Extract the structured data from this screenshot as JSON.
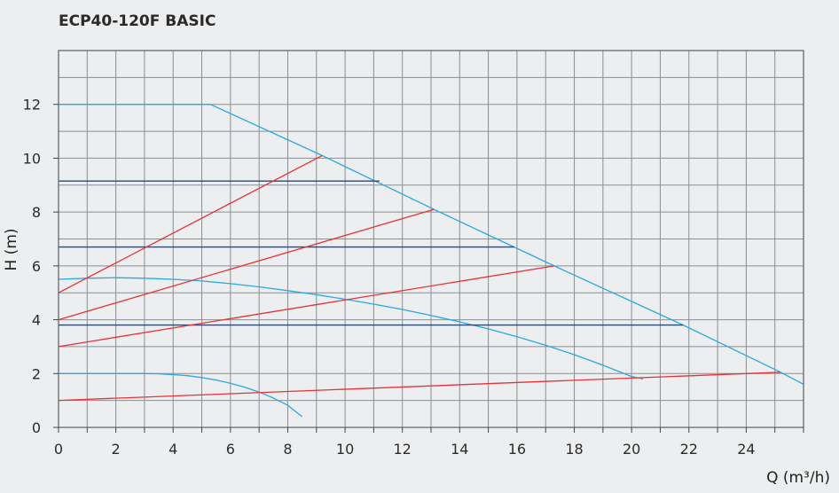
{
  "chart_data": {
    "type": "line",
    "title": "ECP40-120F BASIC",
    "xlabel": "Q (m³/h)",
    "ylabel": "H (m)",
    "xlim": [
      0,
      26
    ],
    "ylim": [
      0,
      14
    ],
    "x_ticks": [
      0,
      2,
      4,
      6,
      8,
      10,
      12,
      14,
      16,
      18,
      20,
      22,
      24
    ],
    "y_ticks": [
      0,
      2,
      4,
      6,
      8,
      10,
      12
    ],
    "grid": true,
    "x_grid_step": 1,
    "y_grid_step": 1,
    "colors": {
      "background": "#eceeef",
      "grid": "#8a8f94",
      "frame": "#5a5f64",
      "pump_curve": "#29a9e1",
      "system_curve": "#e5333b",
      "constant_pressure": "#2f4a6e"
    },
    "series": [
      {
        "kind": "pump_curve",
        "points": [
          [
            0,
            12
          ],
          [
            5.3,
            12
          ],
          [
            9.2,
            10.1
          ],
          [
            13.1,
            8.1
          ],
          [
            15.9,
            6.7
          ],
          [
            17.3,
            6.0
          ],
          [
            21.8,
            3.8
          ],
          [
            25.2,
            2.05
          ],
          [
            26,
            1.6
          ]
        ]
      },
      {
        "kind": "pump_curve",
        "points": [
          [
            0,
            5.5
          ],
          [
            1,
            5.54
          ],
          [
            2,
            5.56
          ],
          [
            3,
            5.54
          ],
          [
            4,
            5.5
          ],
          [
            5,
            5.44
          ],
          [
            6,
            5.34
          ],
          [
            7,
            5.22
          ],
          [
            8,
            5.08
          ],
          [
            9,
            4.93
          ],
          [
            10,
            4.76
          ],
          [
            11,
            4.58
          ],
          [
            12,
            4.38
          ],
          [
            13,
            4.16
          ],
          [
            14,
            3.92
          ],
          [
            15,
            3.66
          ],
          [
            16,
            3.37
          ],
          [
            17,
            3.05
          ],
          [
            18,
            2.7
          ],
          [
            19,
            2.31
          ],
          [
            20,
            1.89
          ],
          [
            20.4,
            1.8
          ]
        ]
      },
      {
        "kind": "pump_curve",
        "points": [
          [
            0,
            2
          ],
          [
            1,
            2.0
          ],
          [
            2,
            2.0
          ],
          [
            3,
            2.0
          ],
          [
            3.5,
            1.99
          ],
          [
            4,
            1.96
          ],
          [
            4.5,
            1.92
          ],
          [
            5,
            1.85
          ],
          [
            5.5,
            1.76
          ],
          [
            6,
            1.64
          ],
          [
            6.5,
            1.49
          ],
          [
            7,
            1.31
          ],
          [
            7.5,
            1.09
          ],
          [
            8,
            0.82
          ],
          [
            8.5,
            0.4
          ]
        ]
      },
      {
        "kind": "constant_pressure",
        "points": [
          [
            0,
            9.15
          ],
          [
            11.2,
            9.15
          ]
        ]
      },
      {
        "kind": "constant_pressure",
        "points": [
          [
            0,
            6.7
          ],
          [
            15.9,
            6.7
          ]
        ]
      },
      {
        "kind": "constant_pressure",
        "points": [
          [
            0,
            3.8
          ],
          [
            21.8,
            3.8
          ]
        ]
      },
      {
        "kind": "system_curve",
        "points": [
          [
            0,
            5.0
          ],
          [
            9.2,
            10.1
          ]
        ]
      },
      {
        "kind": "system_curve",
        "points": [
          [
            0,
            4.0
          ],
          [
            13.1,
            8.1
          ]
        ]
      },
      {
        "kind": "system_curve",
        "points": [
          [
            0,
            3.0
          ],
          [
            17.3,
            6.0
          ]
        ]
      },
      {
        "kind": "system_curve",
        "points": [
          [
            0,
            1.0
          ],
          [
            25.2,
            2.05
          ]
        ]
      }
    ]
  }
}
